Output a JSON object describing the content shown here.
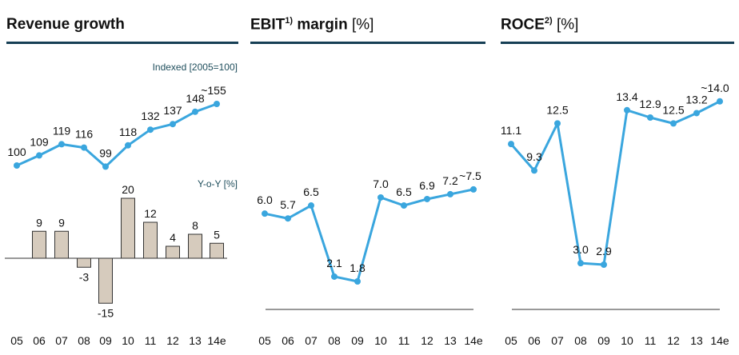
{
  "titles": {
    "p1": {
      "main": "Revenue growth"
    },
    "p2": {
      "main": "EBIT",
      "sup": "1)",
      "rest": " margin",
      "unit": "[%]"
    },
    "p3": {
      "main": "ROCE",
      "sup": "2)",
      "unit": "[%]"
    }
  },
  "colors": {
    "line": "#3aa6de",
    "bar": "#d6cbbd",
    "bar_stroke": "#333333",
    "rule": "#163f55"
  },
  "chart_data": [
    {
      "type": "line",
      "subtitle": "Indexed [2005=100]",
      "categories": [
        "05",
        "06",
        "07",
        "08",
        "09",
        "10",
        "11",
        "12",
        "13",
        "14e"
      ],
      "values": [
        100,
        109,
        119,
        116,
        99,
        118,
        132,
        137,
        148,
        155
      ],
      "labels": [
        "100",
        "109",
        "119",
        "116",
        "99",
        "118",
        "132",
        "137",
        "148",
        "~155"
      ]
    },
    {
      "type": "bar",
      "subtitle": "Y-o-Y [%]",
      "categories": [
        "05",
        "06",
        "07",
        "08",
        "09",
        "10",
        "11",
        "12",
        "13",
        "14e"
      ],
      "values": [
        null,
        9,
        9,
        -3,
        -15,
        20,
        12,
        4,
        8,
        5
      ],
      "labels": [
        "",
        "9",
        "9",
        "-3",
        "-15",
        "20",
        "12",
        "4",
        "8",
        "5"
      ]
    },
    {
      "type": "line",
      "categories": [
        "05",
        "06",
        "07",
        "08",
        "09",
        "10",
        "11",
        "12",
        "13",
        "14e"
      ],
      "values": [
        6.0,
        5.7,
        6.5,
        2.1,
        1.8,
        7.0,
        6.5,
        6.9,
        7.2,
        7.5
      ],
      "labels": [
        "6.0",
        "5.7",
        "6.5",
        "2.1",
        "1.8",
        "7.0",
        "6.5",
        "6.9",
        "7.2",
        "~7.5"
      ]
    },
    {
      "type": "line",
      "categories": [
        "05",
        "06",
        "07",
        "08",
        "09",
        "10",
        "11",
        "12",
        "13",
        "14e"
      ],
      "values": [
        11.1,
        9.3,
        12.5,
        3.0,
        2.9,
        13.4,
        12.9,
        12.5,
        13.2,
        14.0
      ],
      "labels": [
        "11.1",
        "9.3",
        "12.5",
        "3.0",
        "2.9",
        "13.4",
        "12.9",
        "12.5",
        "13.2",
        "~14.0"
      ]
    }
  ]
}
